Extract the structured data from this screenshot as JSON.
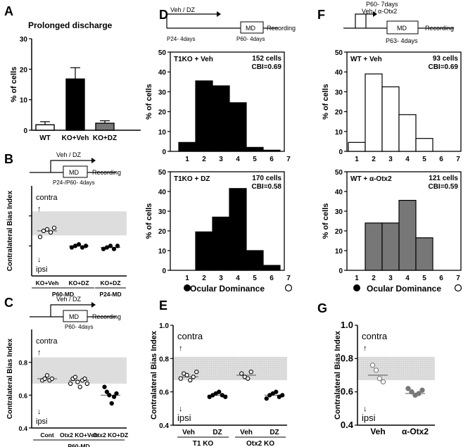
{
  "panels": {
    "A": {
      "letter": "A",
      "title": "Prolonged discharge",
      "chart_data": {
        "type": "bar",
        "title": "Prolonged discharge",
        "ylabel": "% of cells",
        "categories": [
          "WT",
          "KO+Veh",
          "KO+DZ"
        ],
        "values": [
          1.8,
          16.8,
          2.3
        ],
        "errors": [
          1.0,
          3.7,
          0.8
        ],
        "fills": [
          "#ffffff",
          "#000000",
          "#777777"
        ],
        "ylim": [
          0,
          30
        ],
        "yticks": [
          "0",
          "10",
          "20",
          "30"
        ]
      }
    },
    "B": {
      "letter": "B",
      "timeline": {
        "drug": "Veh / DZ",
        "box": "MD",
        "recording": "Recording",
        "sub": "P24-/P60- 4days"
      },
      "chart_data": {
        "type": "scatter",
        "ylabel": "Contralateral Bias Index",
        "ylim": [
          0.4,
          1.0
        ],
        "band": [
          0.67,
          0.83
        ],
        "contra": "contra",
        "ipsi": "ipsi",
        "groups": [
          {
            "label": "KO+Veh",
            "points": [
              0.66,
              0.7,
              0.71,
              0.69,
              0.72
            ],
            "mean": 0.7,
            "filled": false
          },
          {
            "label": "KO+DZ",
            "points": [
              0.59,
              0.6,
              0.61,
              0.59,
              0.6
            ],
            "mean": 0.6,
            "filled": true
          },
          {
            "label": "KO+DZ",
            "points": [
              0.58,
              0.59,
              0.6,
              0.58,
              0.6
            ],
            "mean": 0.59,
            "filled": true
          }
        ],
        "group_labels": [
          {
            "text": "P60-MD",
            "span": [
              0,
              1
            ]
          },
          {
            "text": "P24-MD",
            "span": [
              2,
              2
            ]
          }
        ]
      }
    },
    "C": {
      "letter": "C",
      "timeline": {
        "drug": "Veh / DZ",
        "box": "MD",
        "recording": "Recording",
        "sub": "P60- 4days"
      },
      "chart_data": {
        "type": "scatter",
        "ylabel": "Contralateral Bias Index",
        "ylim": [
          0.4,
          1.0
        ],
        "yticks": [
          "0.4",
          "0.6",
          "0.8"
        ],
        "band": [
          0.67,
          0.83
        ],
        "contra": "contra",
        "ipsi": "ipsi",
        "groups": [
          {
            "label": "Cont",
            "points": [
              0.69,
              0.7,
              0.72,
              0.69,
              0.7
            ],
            "mean": 0.7,
            "filled": false
          },
          {
            "label": "Otx2 KO+Veh",
            "points": [
              0.67,
              0.7,
              0.71,
              0.68,
              0.65,
              0.69,
              0.7,
              0.67
            ],
            "mean": 0.69,
            "filled": false
          },
          {
            "label": "Otx2 KO+DZ",
            "points": [
              0.65,
              0.62,
              0.6,
              0.55,
              0.59,
              0.61
            ],
            "mean": 0.6,
            "filled": true
          }
        ],
        "group_labels": [
          {
            "text": "P60-MD",
            "span": [
              0,
              2
            ]
          }
        ]
      }
    },
    "D": {
      "letter": "D",
      "timeline": {
        "drug": "Veh / DZ",
        "box": "MD",
        "recording": "Recording",
        "sub1": "P24- 4days",
        "sub2": "P60- 4days"
      },
      "chart_data": [
        {
          "type": "bar",
          "title": "T1KO + Veh",
          "cells": "152 cells",
          "cbi": "CBI=0.69",
          "ylabel": "% of cells",
          "categories": [
            "1",
            "2",
            "3",
            "4",
            "5",
            "6",
            "7"
          ],
          "values": [
            4.5,
            35.5,
            33,
            24.5,
            2,
            0.6,
            0
          ],
          "fill": "#000000",
          "ylim": [
            0,
            50
          ],
          "yticks": [
            "0",
            "10",
            "20",
            "30",
            "40",
            "50"
          ]
        },
        {
          "type": "bar",
          "title": "T1KO + DZ",
          "cells": "170 cells",
          "cbi": "CBI=0.58",
          "ylabel": "% of cells",
          "xlabel": "Ocular Dominance",
          "categories": [
            "1",
            "2",
            "3",
            "4",
            "5",
            "6",
            "7"
          ],
          "values": [
            0,
            19.5,
            27,
            41.5,
            10,
            2.5,
            0
          ],
          "fill": "#000000",
          "ylim": [
            0,
            50
          ],
          "yticks": [
            "0",
            "10",
            "20",
            "30",
            "40",
            "50"
          ]
        }
      ]
    },
    "E": {
      "letter": "E",
      "chart_data": {
        "type": "scatter",
        "ylabel": "Contralateral Bias Index",
        "ylim": [
          0.4,
          1.0
        ],
        "yticks": [
          "0.4",
          "0.6",
          "0.8",
          "1.0"
        ],
        "band": [
          0.67,
          0.81
        ],
        "contra": "contra",
        "ipsi": "ipsi",
        "groups": [
          {
            "label": "Veh",
            "points": [
              0.68,
              0.71,
              0.7,
              0.67,
              0.69,
              0.72
            ],
            "mean": 0.69,
            "filled": false
          },
          {
            "label": "DZ",
            "points": [
              0.57,
              0.58,
              0.59,
              0.6,
              0.58,
              0.57
            ],
            "mean": 0.58,
            "filled": true
          },
          {
            "label": "Veh",
            "points": [
              0.71,
              0.69,
              0.68,
              0.72
            ],
            "mean": 0.7,
            "filled": false
          },
          {
            "label": "DZ",
            "points": [
              0.56,
              0.58,
              0.59,
              0.6,
              0.57,
              0.58
            ],
            "mean": 0.58,
            "filled": true
          }
        ],
        "group_labels": [
          {
            "text": "T1 KO",
            "span": [
              0,
              1
            ]
          },
          {
            "text": "Otx2 KO",
            "span": [
              2,
              3
            ]
          }
        ]
      }
    },
    "F": {
      "letter": "F",
      "timeline": {
        "drug": "P60- 7days",
        "drug2": "Veh / α-Otx2",
        "box": "MD",
        "recording": "Recording",
        "sub": "P63- 4days"
      },
      "chart_data": [
        {
          "type": "bar",
          "title": "WT + Veh",
          "cells": "93 cells",
          "cbi": "CBI=0.69",
          "ylabel": "% of cells",
          "categories": [
            "1",
            "2",
            "3",
            "4",
            "5",
            "6",
            "7"
          ],
          "values": [
            4.5,
            39,
            32.5,
            18.5,
            6.5,
            0,
            0
          ],
          "fill": "#ffffff",
          "ylim": [
            0,
            50
          ],
          "yticks": [
            "0",
            "10",
            "20",
            "30",
            "40",
            "50"
          ]
        },
        {
          "type": "bar",
          "title": "WT + α-Otx2",
          "cells": "121 cells",
          "cbi": "CBI=0.59",
          "ylabel": "% of cells",
          "xlabel": "Ocular Dominance",
          "categories": [
            "1",
            "2",
            "3",
            "4",
            "5",
            "6",
            "7"
          ],
          "values": [
            0,
            24,
            24,
            35.5,
            16.5,
            0,
            0
          ],
          "fill": "#777777",
          "ylim": [
            0,
            50
          ],
          "yticks": [
            "0",
            "10",
            "20",
            "30",
            "40",
            "50"
          ]
        }
      ]
    },
    "G": {
      "letter": "G",
      "chart_data": {
        "type": "scatter",
        "ylabel": "Contralateral Bias Index",
        "ylim": [
          0.4,
          1.0
        ],
        "yticks": [
          "0.4",
          "0.6",
          "0.8",
          "1.0"
        ],
        "band": [
          0.67,
          0.81
        ],
        "contra": "contra",
        "ipsi": "ipsi",
        "groups": [
          {
            "label": "Veh",
            "points": [
              0.76,
              0.73,
              0.68,
              0.66
            ],
            "mean": 0.7,
            "filled": false,
            "color": "#777777"
          },
          {
            "label": "α-Otx2",
            "points": [
              0.62,
              0.6,
              0.58,
              0.59,
              0.61
            ],
            "mean": 0.59,
            "filled": true,
            "color": "#777777"
          }
        ]
      }
    }
  }
}
